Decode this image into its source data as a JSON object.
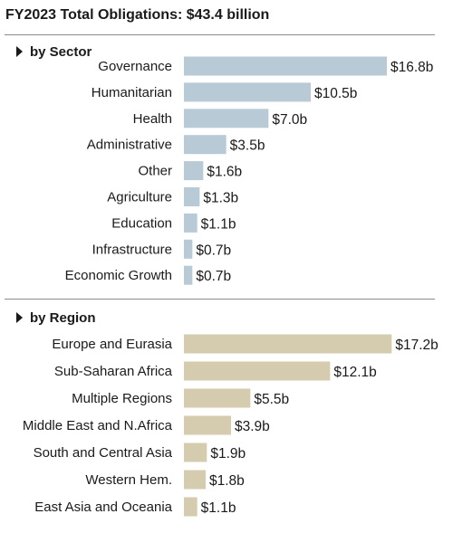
{
  "title": "FY2023 Total Obligations: $43.4 billion",
  "colors": {
    "sector_bar": "#b8cad6",
    "region_bar": "#d5cbae",
    "text": "#1a1a1a",
    "rule": "#8c8c8c"
  },
  "chart_data": [
    {
      "type": "bar",
      "orientation": "horizontal",
      "heading": "by Sector",
      "heading_icon": "caret-right-icon",
      "unit": "billion USD",
      "categories": [
        "Governance",
        "Humanitarian",
        "Health",
        "Administrative",
        "Other",
        "Agriculture",
        "Education",
        "Infrastructure",
        "Economic Growth"
      ],
      "values": [
        16.8,
        10.5,
        7.0,
        3.5,
        1.6,
        1.3,
        1.1,
        0.7,
        0.7
      ],
      "labels": [
        "$16.8b",
        "$10.5b",
        "$7.0b",
        "$3.5b",
        "$1.6b",
        "$1.3b",
        "$1.1b",
        "$0.7b",
        "$0.7b"
      ],
      "xlim": [
        0,
        17.5
      ]
    },
    {
      "type": "bar",
      "orientation": "horizontal",
      "heading": "by Region",
      "heading_icon": "caret-right-icon",
      "unit": "billion USD",
      "categories": [
        "Europe and Eurasia",
        "Sub-Saharan Africa",
        "Multiple Regions",
        "Middle East and N.Africa",
        "South and Central Asia",
        "Western Hem.",
        "East Asia and Oceania"
      ],
      "values": [
        17.2,
        12.1,
        5.5,
        3.9,
        1.9,
        1.8,
        1.1
      ],
      "labels": [
        "$17.2b",
        "$12.1b",
        "$5.5b",
        "$3.9b",
        "$1.9b",
        "$1.8b",
        "$1.1b"
      ],
      "xlim": [
        0,
        17.5
      ]
    }
  ]
}
